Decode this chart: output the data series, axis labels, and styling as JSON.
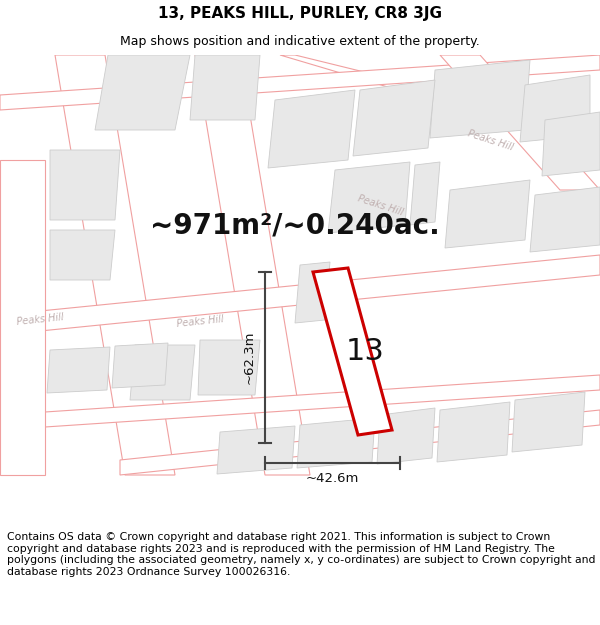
{
  "title": "13, PEAKS HILL, PURLEY, CR8 3JG",
  "subtitle": "Map shows position and indicative extent of the property.",
  "area_text": "~971m²/~0.240ac.",
  "property_number": "13",
  "dim_width": "~42.6m",
  "dim_height": "~62.3m",
  "footer": "Contains OS data © Crown copyright and database right 2021. This information is subject to Crown copyright and database rights 2023 and is reproduced with the permission of HM Land Registry. The polygons (including the associated geometry, namely x, y co-ordinates) are subject to Crown copyright and database rights 2023 Ordnance Survey 100026316.",
  "bg_color": "#ffffff",
  "map_bg": "#ffffff",
  "road_fill": "#ffffff",
  "parcel_fill": "#e8e8e8",
  "parcel_ec": "#cccccc",
  "road_line_color": "#f0a0a0",
  "property_fill": "#ffffff",
  "property_edge": "#cc0000",
  "dim_line_color": "#444444",
  "road_label_color": "#c0b0b0",
  "title_fontsize": 11,
  "subtitle_fontsize": 9,
  "area_fontsize": 20,
  "propnum_fontsize": 22,
  "dim_fontsize": 9.5,
  "footer_fontsize": 7.8,
  "road_label_fontsize": 7
}
